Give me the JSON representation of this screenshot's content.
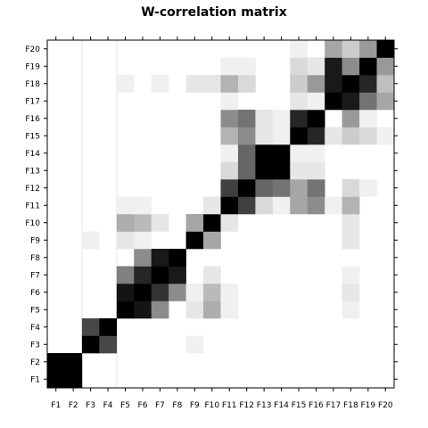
{
  "chart_data": {
    "type": "heatmap",
    "title": "W-correlation matrix",
    "xlabel": "",
    "ylabel": "",
    "x_categories": [
      "F1",
      "F2",
      "F3",
      "F4",
      "F5",
      "F6",
      "F7",
      "F8",
      "F9",
      "F10",
      "F11",
      "F12",
      "F13",
      "F14",
      "F15",
      "F16",
      "F17",
      "F18",
      "F19",
      "F20"
    ],
    "y_categories": [
      "F1",
      "F2",
      "F3",
      "F4",
      "F5",
      "F6",
      "F7",
      "F8",
      "F9",
      "F10",
      "F11",
      "F12",
      "F13",
      "F14",
      "F15",
      "F16",
      "F17",
      "F18",
      "F19",
      "F20"
    ],
    "value_range": [
      0,
      1
    ],
    "color_scale": {
      "low": "#ffffff",
      "high": "#000000"
    },
    "grid": false,
    "legend": "none",
    "values": [
      [
        1.0,
        1.0,
        0,
        0,
        0,
        0,
        0,
        0,
        0,
        0,
        0,
        0,
        0,
        0,
        0,
        0,
        0,
        0,
        0,
        0
      ],
      [
        1.0,
        1.0,
        0,
        0,
        0,
        0,
        0,
        0,
        0,
        0,
        0,
        0,
        0,
        0,
        0,
        0,
        0,
        0,
        0,
        0
      ],
      [
        0,
        0,
        1.0,
        0.72,
        0,
        0,
        0,
        0,
        0.06,
        0,
        0,
        0,
        0,
        0,
        0,
        0,
        0,
        0,
        0,
        0
      ],
      [
        0,
        0,
        0.72,
        1.0,
        0,
        0,
        0,
        0,
        0,
        0,
        0,
        0,
        0,
        0,
        0,
        0,
        0,
        0,
        0,
        0
      ],
      [
        0,
        0,
        0,
        0,
        1.0,
        0.92,
        0.45,
        0,
        0.1,
        0.32,
        0.06,
        0,
        0,
        0,
        0,
        0,
        0,
        0.06,
        0,
        0
      ],
      [
        0,
        0,
        0,
        0,
        0.92,
        1.0,
        0.8,
        0.45,
        0.06,
        0.27,
        0.06,
        0,
        0,
        0,
        0,
        0,
        0,
        0.1,
        0,
        0
      ],
      [
        0,
        0,
        0,
        0,
        0.5,
        0.85,
        1.0,
        0.9,
        0,
        0.1,
        0,
        0,
        0,
        0,
        0,
        0,
        0,
        0.06,
        0,
        0
      ],
      [
        0,
        0,
        0,
        0,
        0,
        0.45,
        0.9,
        1.0,
        0,
        0,
        0,
        0,
        0,
        0,
        0,
        0,
        0,
        0,
        0,
        0
      ],
      [
        0,
        0,
        0.06,
        0,
        0.1,
        0.06,
        0,
        0,
        1.0,
        0.35,
        0,
        0,
        0,
        0,
        0,
        0,
        0,
        0.1,
        0,
        0
      ],
      [
        0,
        0,
        0,
        0,
        0.32,
        0.27,
        0.1,
        0,
        0.35,
        1.0,
        0.1,
        0,
        0,
        0,
        0,
        0,
        0,
        0.1,
        0,
        0
      ],
      [
        0,
        0,
        0,
        0,
        0.06,
        0.06,
        0,
        0,
        0,
        0.1,
        1.0,
        0.75,
        0.15,
        0.06,
        0.35,
        0.45,
        0.06,
        0.3,
        0,
        0
      ],
      [
        0,
        0,
        0,
        0,
        0,
        0,
        0,
        0,
        0,
        0,
        0.75,
        1.0,
        0.6,
        0.55,
        0.35,
        0.55,
        0,
        0.15,
        0.06,
        0
      ],
      [
        0,
        0,
        0,
        0,
        0,
        0,
        0,
        0,
        0,
        0,
        0.15,
        0.6,
        1.0,
        1.0,
        0.1,
        0.1,
        0,
        0,
        0,
        0
      ],
      [
        0,
        0,
        0,
        0,
        0,
        0,
        0,
        0,
        0,
        0,
        0.06,
        0.6,
        1.0,
        1.0,
        0.06,
        0.06,
        0,
        0,
        0,
        0
      ],
      [
        0,
        0,
        0,
        0,
        0,
        0,
        0,
        0,
        0,
        0,
        0.3,
        0.45,
        0.1,
        0.06,
        1.0,
        0.85,
        0.1,
        0.2,
        0.15,
        0.06
      ],
      [
        0,
        0,
        0,
        0,
        0,
        0,
        0,
        0,
        0,
        0,
        0.45,
        0.55,
        0.1,
        0.06,
        0.85,
        1.0,
        0,
        0.4,
        0.06,
        0
      ],
      [
        0,
        0,
        0,
        0,
        0,
        0,
        0,
        0,
        0,
        0,
        0.06,
        0,
        0,
        0,
        0.1,
        0.06,
        1.0,
        0.9,
        0.55,
        0.35
      ],
      [
        0,
        0,
        0,
        0,
        0.06,
        0,
        0.06,
        0,
        0.1,
        0.1,
        0.3,
        0.15,
        0,
        0,
        0.2,
        0.4,
        0.9,
        1.0,
        0.85,
        0.25
      ],
      [
        0,
        0,
        0,
        0,
        0,
        0,
        0,
        0,
        0,
        0,
        0.06,
        0.06,
        0,
        0,
        0.15,
        0.1,
        0.9,
        0.45,
        1.0,
        0.4
      ],
      [
        0,
        0,
        0,
        0,
        0,
        0,
        0,
        0,
        0,
        0,
        0,
        0,
        0,
        0,
        0.06,
        0,
        0.35,
        0.2,
        0.4,
        1.0
      ]
    ]
  }
}
